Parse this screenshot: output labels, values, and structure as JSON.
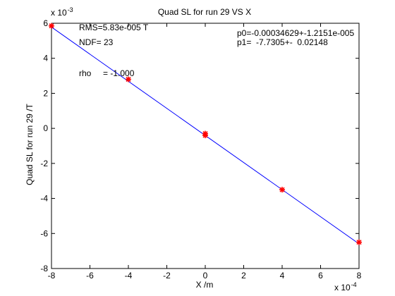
{
  "chart_data": {
    "type": "scatter",
    "title": "Quad SL for run 29 VS X",
    "xlabel": "X /m",
    "ylabel": "Quad SL for run 29 /T",
    "x_exponent_label": {
      "base": "x 10",
      "exp": "-4"
    },
    "y_exponent_label": {
      "base": "x 10",
      "exp": "-3"
    },
    "xlim": [
      -8,
      8
    ],
    "ylim": [
      -8,
      6
    ],
    "xticks": [
      "-8",
      "-6",
      "-4",
      "-2",
      "0",
      "2",
      "4",
      "6",
      "8"
    ],
    "yticks": [
      "6",
      "4",
      "2",
      "0",
      "-2",
      "-4",
      "-6",
      "-8"
    ],
    "x_scale": "x 10^-4",
    "y_scale": "x 10^-3",
    "grid": false,
    "series": [
      {
        "style": "red asterisk markers",
        "color": "#ff0000",
        "x": [
          -8,
          -4,
          0,
          0,
          4,
          8
        ],
        "y": [
          5.85,
          2.8,
          -0.3,
          -0.4,
          -3.5,
          -6.5
        ]
      },
      {
        "style": "blue fit line",
        "color": "#0000ff",
        "x": [
          -8,
          8
        ],
        "y": [
          5.78,
          -6.59
        ]
      }
    ],
    "annotations": {
      "rms": "RMS=5.83e-005 T",
      "ndf": "NDF=   23",
      "rho": "rho     = -1.000",
      "p0": "p0=-0.00034629+-1.2151e-005",
      "p1": "p1=  -7.7305+-  0.02148"
    }
  }
}
